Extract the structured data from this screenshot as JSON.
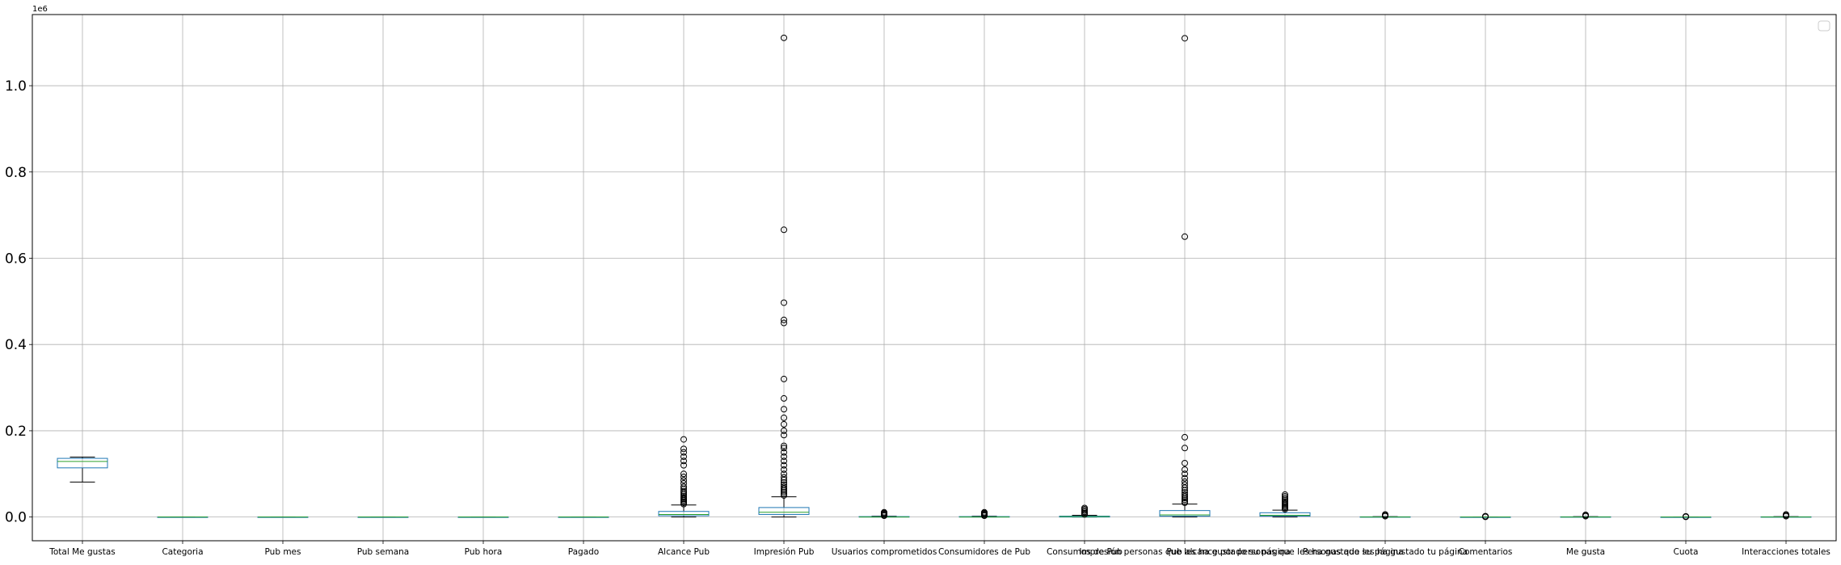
{
  "chart_data": {
    "type": "box",
    "title": "",
    "xlabel": "",
    "ylabel": "",
    "y_offset_label": "1e6",
    "ylim": [
      -0.055,
      1.165
    ],
    "yticks": [
      0.0,
      0.2,
      0.4,
      0.6,
      0.8,
      1.0
    ],
    "ytick_labels": [
      "0.0",
      "0.2",
      "0.4",
      "0.6",
      "0.8",
      "1.0"
    ],
    "grid": true,
    "legend": {
      "placement": "top-right",
      "entries": []
    },
    "colors": {
      "box": "#1f77b4",
      "median": "#2ca02c",
      "whisker": "#000000",
      "grid": "#b0b0b0",
      "flier_edge": "#000000"
    },
    "categories": [
      "Total Me gustas",
      "Categoria",
      "Pub mes",
      "Pub semana",
      "Pub hora",
      "Pagado",
      "Alcance Pub",
      "Impresión Pub",
      "Usuarios comprometidos",
      "Consumidores de Pub",
      "Consumos de Pub",
      "Impresión  personas que les ha gustado su página",
      "Pub alcance por personas que les ha gustado su página",
      "Personas que les ha gustado tu página",
      "Comentarios",
      "Me gusta",
      "Cuota",
      "Interacciones totales"
    ],
    "series": [
      {
        "min": 0.081,
        "q1": 0.114,
        "median": 0.129,
        "q3": 0.136,
        "max": 0.139,
        "fliers": []
      },
      {
        "min": 0.0,
        "q1": 0.0,
        "median": 0.0,
        "q3": 0.0,
        "max": 0.0,
        "fliers": []
      },
      {
        "min": 0.0,
        "q1": 0.0,
        "median": 0.0,
        "q3": 0.0,
        "max": 0.0,
        "fliers": []
      },
      {
        "min": 0.0,
        "q1": 0.0,
        "median": 0.0,
        "q3": 0.0,
        "max": 0.0,
        "fliers": []
      },
      {
        "min": 0.0,
        "q1": 0.0,
        "median": 0.0,
        "q3": 0.0,
        "max": 0.0,
        "fliers": []
      },
      {
        "min": 0.0,
        "q1": 0.0,
        "median": 0.0,
        "q3": 0.0,
        "max": 0.0,
        "fliers": []
      },
      {
        "min": 0.0,
        "q1": 0.003,
        "median": 0.006,
        "q3": 0.013,
        "max": 0.028,
        "fliers": [
          0.03,
          0.033,
          0.036,
          0.039,
          0.042,
          0.045,
          0.048,
          0.052,
          0.056,
          0.06,
          0.065,
          0.07,
          0.078,
          0.085,
          0.093,
          0.1,
          0.12,
          0.13,
          0.14,
          0.15,
          0.158,
          0.18
        ]
      },
      {
        "min": 0.0,
        "q1": 0.006,
        "median": 0.011,
        "q3": 0.022,
        "max": 0.047,
        "fliers": [
          0.05,
          0.054,
          0.058,
          0.062,
          0.066,
          0.07,
          0.075,
          0.08,
          0.086,
          0.092,
          0.1,
          0.11,
          0.12,
          0.13,
          0.14,
          0.15,
          0.16,
          0.165,
          0.19,
          0.2,
          0.215,
          0.23,
          0.25,
          0.275,
          0.32,
          0.45,
          0.457,
          0.497,
          0.666,
          1.111
        ]
      },
      {
        "min": 0.0,
        "q1": 0.0,
        "median": 0.0,
        "q3": 0.001,
        "max": 0.002,
        "fliers": [
          0.003,
          0.005,
          0.007,
          0.009,
          0.011
        ]
      },
      {
        "min": 0.0,
        "q1": 0.0,
        "median": 0.0,
        "q3": 0.001,
        "max": 0.002,
        "fliers": [
          0.003,
          0.005,
          0.007,
          0.009,
          0.011
        ]
      },
      {
        "min": 0.0,
        "q1": 0.0,
        "median": 0.001,
        "q3": 0.002,
        "max": 0.004,
        "fliers": [
          0.006,
          0.009,
          0.012,
          0.015,
          0.018,
          0.021
        ]
      },
      {
        "min": 0.0,
        "q1": 0.002,
        "median": 0.005,
        "q3": 0.015,
        "max": 0.03,
        "fliers": [
          0.033,
          0.036,
          0.04,
          0.044,
          0.048,
          0.052,
          0.057,
          0.062,
          0.068,
          0.075,
          0.082,
          0.09,
          0.1,
          0.11,
          0.125,
          0.16,
          0.185,
          0.65,
          1.11
        ]
      },
      {
        "min": 0.0,
        "q1": 0.002,
        "median": 0.004,
        "q3": 0.01,
        "max": 0.016,
        "fliers": [
          0.018,
          0.021,
          0.024,
          0.027,
          0.03,
          0.033,
          0.036,
          0.04,
          0.044,
          0.048,
          0.052
        ]
      },
      {
        "min": 0.0,
        "q1": 0.0,
        "median": 0.0,
        "q3": 0.0005,
        "max": 0.001,
        "fliers": [
          0.002,
          0.004,
          0.006
        ]
      },
      {
        "min": 0.0,
        "q1": 0.0,
        "median": 0.0,
        "q3": 0.0,
        "max": 0.0,
        "fliers": [
          0.0005,
          0.001,
          0.0015,
          0.002
        ]
      },
      {
        "min": 0.0,
        "q1": 0.0,
        "median": 0.0,
        "q3": 0.0005,
        "max": 0.001,
        "fliers": [
          0.002,
          0.004,
          0.005
        ]
      },
      {
        "min": 0.0,
        "q1": 0.0,
        "median": 0.0,
        "q3": 0.0,
        "max": 0.0,
        "fliers": [
          0.0005,
          0.001,
          0.0015
        ]
      },
      {
        "min": 0.0,
        "q1": 0.0,
        "median": 0.0,
        "q3": 0.0005,
        "max": 0.001,
        "fliers": [
          0.002,
          0.004,
          0.006
        ]
      }
    ]
  }
}
